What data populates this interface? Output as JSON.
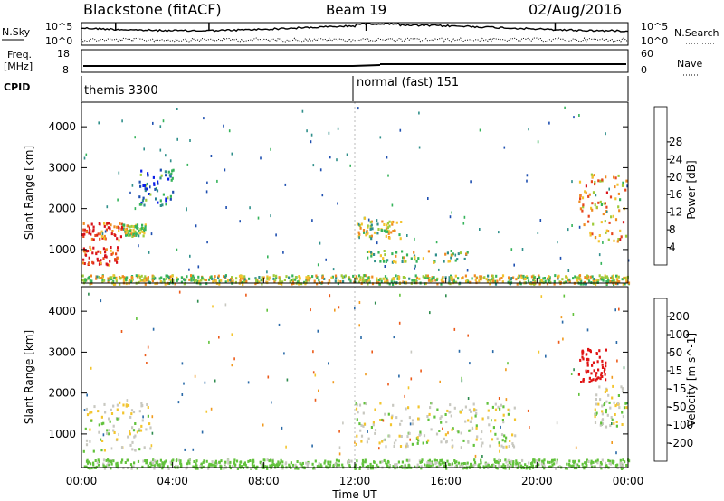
{
  "header": {
    "station": "Blackstone (fitACF)",
    "beam": "Beam 19",
    "date": "02/Aug/2016"
  },
  "noise_panel": {
    "left_label": "N.Sky",
    "left_ticks": [
      "10^5",
      "10^0"
    ],
    "right_label": "N.Search",
    "right_ticks": [
      "10^5",
      "10^0"
    ]
  },
  "freq_panel": {
    "left_label": "Freq.",
    "left_unit": "[MHz]",
    "left_ticks": [
      "18",
      "8"
    ],
    "right_label": "Nave",
    "right_ticks": [
      "60",
      "0"
    ]
  },
  "cpid_panel": {
    "label": "CPID",
    "modes": [
      {
        "name": "themis 3300",
        "start": "00:00"
      },
      {
        "name": "normal (fast) 151",
        "start": "12:00"
      }
    ]
  },
  "x_axis": {
    "label": "Time UT",
    "ticks": [
      "00:00",
      "04:00",
      "08:00",
      "12:00",
      "16:00",
      "20:00",
      "00:00"
    ]
  },
  "chart_data": [
    {
      "type": "heatmap",
      "title": "",
      "xlabel": "Time UT",
      "ylabel": "Slant Range [km]",
      "ylim": [
        180,
        4600
      ],
      "yticks": [
        "1000",
        "2000",
        "3000",
        "4000"
      ],
      "colorbar": {
        "label": "Power [dB]",
        "ticks": [
          "4",
          "8",
          "12",
          "16",
          "20",
          "24",
          "28"
        ],
        "colors": [
          "#0a1ee8",
          "#1e4fb0",
          "#2f8f8a",
          "#35b35a",
          "#9ecb3a",
          "#f2c32e",
          "#ef8a20",
          "#e8461c",
          "#d9141b"
        ]
      },
      "features": [
        {
          "time_hours": [
            0.0,
            1.8
          ],
          "range_km": [
            1250,
            1700
          ],
          "power_db": 26
        },
        {
          "time_hours": [
            0.0,
            1.6
          ],
          "range_km": [
            650,
            1100
          ],
          "power_db": 26
        },
        {
          "time_hours": [
            1.8,
            2.8
          ],
          "range_km": [
            1350,
            1650
          ],
          "power_db": 14
        },
        {
          "time_hours": [
            2.5,
            4.0
          ],
          "range_km": [
            2100,
            3000
          ],
          "power_db": 8
        },
        {
          "time_hours": [
            12.0,
            14.0
          ],
          "range_km": [
            1300,
            1800
          ],
          "power_db": 16
        },
        {
          "time_hours": [
            12.5,
            17.0
          ],
          "range_km": [
            700,
            1000
          ],
          "power_db": 14
        },
        {
          "time_hours": [
            21.8,
            23.9
          ],
          "range_km": [
            1200,
            2900
          ],
          "power_db": 20
        },
        {
          "time_hours": [
            0.0,
            24.0
          ],
          "range_km": [
            180,
            400
          ],
          "power_db": 16
        }
      ]
    },
    {
      "type": "heatmap",
      "title": "",
      "xlabel": "Time UT",
      "ylabel": "Slant Range [km]",
      "ylim": [
        180,
        4600
      ],
      "yticks": [
        "1000",
        "2000",
        "3000",
        "4000"
      ],
      "colorbar": {
        "label": "Velocity [m s^-1]",
        "ticks": [
          "200",
          "100",
          "50",
          "15",
          "-15",
          "-50",
          "-100",
          "-200"
        ],
        "colors": [
          "#1e2fa8",
          "#2a6aa8",
          "#2e8b4e",
          "#62c23c",
          "#c8c8c0",
          "#f3c52e",
          "#f09a1e",
          "#ec5a18",
          "#e01414"
        ]
      },
      "features": [
        {
          "time_hours": [
            0.0,
            3.0
          ],
          "range_km": [
            600,
            1800
          ],
          "velocity_ms": 0
        },
        {
          "time_hours": [
            12.0,
            19.0
          ],
          "range_km": [
            700,
            1800
          ],
          "velocity_ms": 0
        },
        {
          "time_hours": [
            21.8,
            23.0
          ],
          "range_km": [
            2300,
            3100
          ],
          "velocity_ms": -200
        },
        {
          "time_hours": [
            22.5,
            23.9
          ],
          "range_km": [
            1200,
            2200
          ],
          "velocity_ms": 0
        },
        {
          "time_hours": [
            0.0,
            24.0
          ],
          "range_km": [
            180,
            400
          ],
          "velocity_ms": 15
        }
      ]
    }
  ]
}
